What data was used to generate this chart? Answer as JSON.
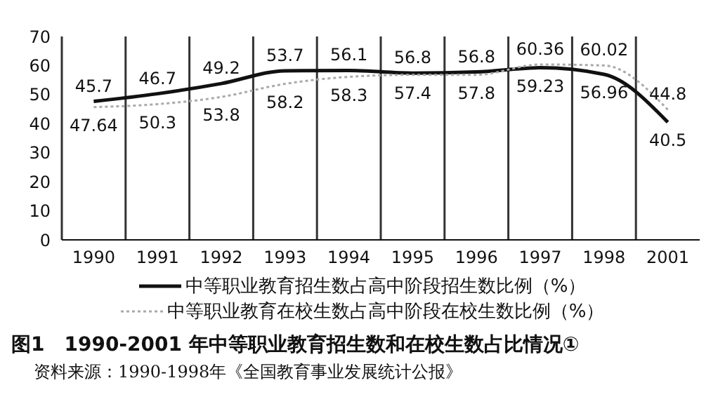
{
  "chart_data": {
    "type": "line",
    "title": "图1　1990-2001 年中等职业教育招生数和在校生数占比情况①",
    "annotations": [
      "资料来源：1990-1998年《全国教育事业发展统计公报》"
    ],
    "categories": [
      "1990",
      "1991",
      "1992",
      "1993",
      "1994",
      "1995",
      "1996",
      "1997",
      "1998",
      "2001"
    ],
    "series": [
      {
        "name": "中等职业教育招生数占高中阶段招生数比例（%）",
        "color": "#111111",
        "line_style": "solid",
        "values": [
          47.64,
          50.3,
          53.8,
          58.2,
          58.3,
          57.4,
          57.8,
          59.23,
          56.96,
          40.5
        ]
      },
      {
        "name": "中等职业教育在校生数占高中阶段在校生数比例（%）",
        "color": "#aaaaaa",
        "line_style": "dotted",
        "values": [
          45.7,
          46.7,
          49.2,
          53.7,
          56.1,
          56.8,
          56.8,
          60.36,
          60.02,
          44.8
        ]
      }
    ],
    "ylim": [
      0,
      70
    ],
    "yticks": [
      0,
      10,
      20,
      30,
      40,
      50,
      60,
      70
    ],
    "grid": "x",
    "legend": "bottom",
    "data_labels": true,
    "marker": "none"
  }
}
